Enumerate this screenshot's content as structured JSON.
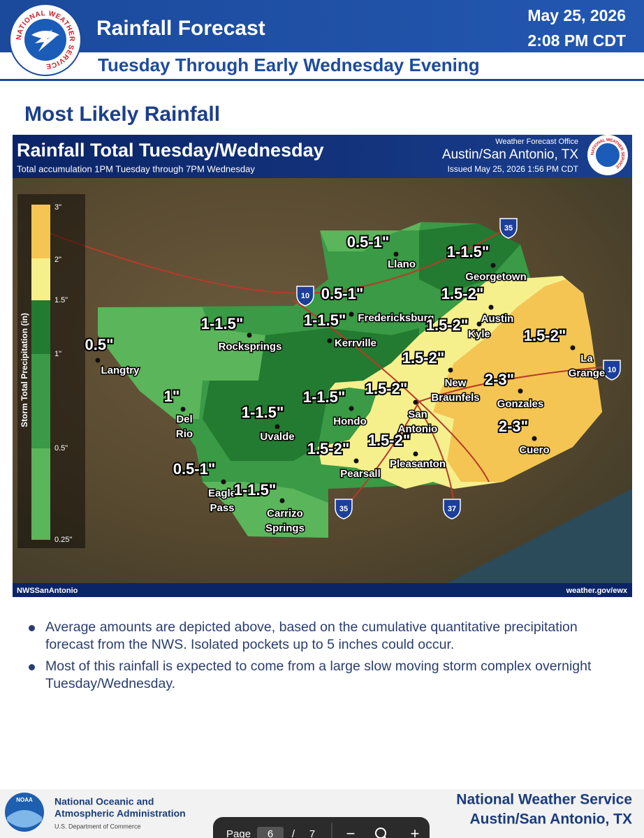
{
  "header": {
    "logo_text": "NATIONAL WEATHER SERVICE",
    "title": "Rainfall Forecast",
    "subtitle": "Tuesday Through Early Wednesday Evening",
    "date": "May 25, 2026",
    "time": "2:08 PM CDT"
  },
  "section_title": "Most Likely Rainfall",
  "map": {
    "title": "Rainfall Total Tuesday/Wednesday",
    "subtitle": "Total accumulation 1PM Tuesday through 7PM Wednesday",
    "office": "Weather Forecast Office",
    "office_location": "Austin/San Antonio, TX",
    "issued": "Issued May 25, 2026 1:56 PM CDT",
    "logo_text": "NATIONAL WEATHER SERVICE",
    "legend": {
      "title": "Storm Total Precipitation (in)",
      "ticks": [
        "3\"",
        "2\"",
        "1.5\"",
        "1\"",
        "0.5\"",
        "0.25\""
      ]
    },
    "amounts": [
      "0.5-1\"",
      "1-1.5\"",
      "0.5-1\"",
      "1.5-2\"",
      "1-1.5\"",
      "1-1.5\"",
      "1.5-2\"",
      "1.5-2\"",
      "0.5\"",
      "1.5-2\"",
      "2-3\"",
      "1.5-2\"",
      "1-1.5\"",
      "1\"",
      "1-1.5\"",
      "2-3\"",
      "1.5-2\"",
      "1.5-2\"",
      "0.5-1\"",
      "1-1.5\""
    ],
    "cities": [
      [
        "Llano"
      ],
      [
        "Georgetown"
      ],
      [
        "Fredericksburg"
      ],
      [
        "Austin"
      ],
      [
        "Kerrville"
      ],
      [
        "Rocksprings"
      ],
      [
        "Langtry"
      ],
      [
        "Kyle"
      ],
      [
        "La",
        "Grange"
      ],
      [
        "New",
        "Braunfels"
      ],
      [
        "San",
        "Antonio"
      ],
      [
        "Gonzales"
      ],
      [
        "Del",
        "Rio"
      ],
      [
        "Hondo"
      ],
      [
        "Uvalde"
      ],
      [
        "Cuero"
      ],
      [
        "Pleasanton"
      ],
      [
        "Pearsall"
      ],
      [
        "Eagle",
        "Pass"
      ],
      [
        "Carrizo",
        "Springs"
      ]
    ],
    "highways": [
      "35",
      "10",
      "10",
      "35",
      "37"
    ],
    "credit_left": "NWSSanAntonio",
    "credit_right": "weather.gov/ewx"
  },
  "bullets": [
    "Average amounts are depicted above, based on the cumulative quantitative precipitation forecast from the NWS. Isolated pockets up to 5 inches could occur.",
    "Most of this rainfall is expected to come from a large slow moving storm complex overnight Tuesday/Wednesday."
  ],
  "footer": {
    "noaa_logo": "NOAA",
    "agency": [
      "National Oceanic and",
      "Atmospheric Administration"
    ],
    "department": "U.S. Department of Commerce",
    "office": "National Weather Service",
    "location": "Austin/San Antonio, TX"
  },
  "viewer": {
    "page_label": "Page",
    "page": 6,
    "separator": "/",
    "total": 7,
    "zoom_out": "−",
    "zoom_in": "+"
  }
}
